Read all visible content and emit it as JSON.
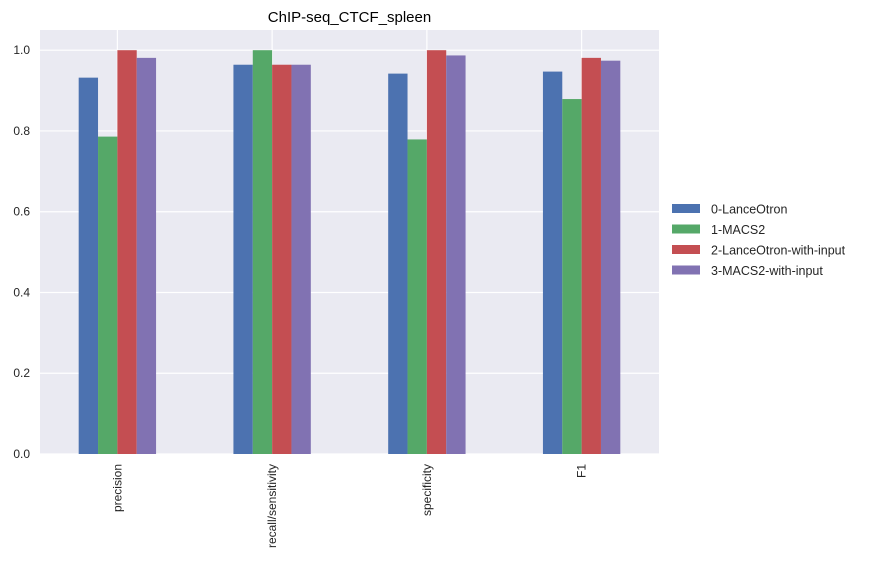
{
  "chart_data": {
    "type": "bar",
    "title": "ChIP-seq_CTCF_spleen",
    "xlabel": "",
    "ylabel": "",
    "ylim": [
      0,
      1.05
    ],
    "yticks": [
      "0.0",
      "0.2",
      "0.4",
      "0.6",
      "0.8",
      "1.0"
    ],
    "ytick_values": [
      0,
      0.2,
      0.4,
      0.6,
      0.8,
      1.0
    ],
    "categories": [
      "precision",
      "recall/sensitivity",
      "specificity",
      "F1"
    ],
    "series": [
      {
        "name": "0-LanceOtron",
        "color": "#4c72b0",
        "values": [
          0.932,
          0.964,
          0.942,
          0.947
        ]
      },
      {
        "name": "1-MACS2",
        "color": "#55a868",
        "values": [
          0.786,
          1.0,
          0.779,
          0.879
        ]
      },
      {
        "name": "2-LanceOtron-with-input",
        "color": "#c44e52",
        "values": [
          1.0,
          0.964,
          1.0,
          0.981
        ]
      },
      {
        "name": "3-MACS2-with-input",
        "color": "#8172b2",
        "values": [
          0.981,
          0.964,
          0.987,
          0.974
        ]
      }
    ],
    "grid": true,
    "legend_position": "right"
  }
}
